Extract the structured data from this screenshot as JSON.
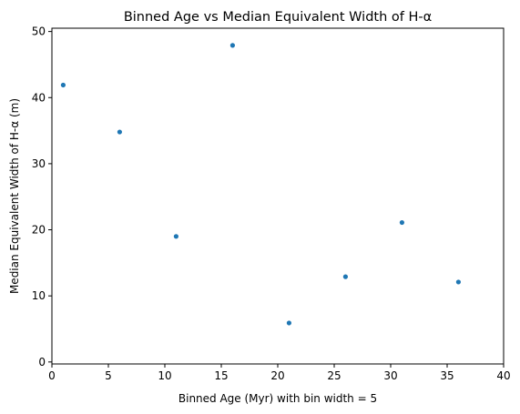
{
  "chart_data": {
    "type": "scatter",
    "title": "Binned Age vs Median Equivalent Width of H-α",
    "xlabel": "Binned Age (Myr) with bin width = 5",
    "ylabel": "Median Equivalent Width of H-α (m)",
    "xlim": [
      0,
      40
    ],
    "ylim": [
      -0.3,
      50.5
    ],
    "xticks": [
      0,
      5,
      10,
      15,
      20,
      25,
      30,
      35,
      40
    ],
    "yticks": [
      0,
      10,
      20,
      30,
      40,
      50
    ],
    "grid": false,
    "series": [
      {
        "color": "#1f77b4",
        "x": [
          1,
          6,
          11,
          16,
          21,
          26,
          31,
          36
        ],
        "y": [
          41.9,
          34.8,
          19.0,
          47.9,
          5.9,
          12.9,
          21.1,
          12.1
        ]
      }
    ]
  }
}
